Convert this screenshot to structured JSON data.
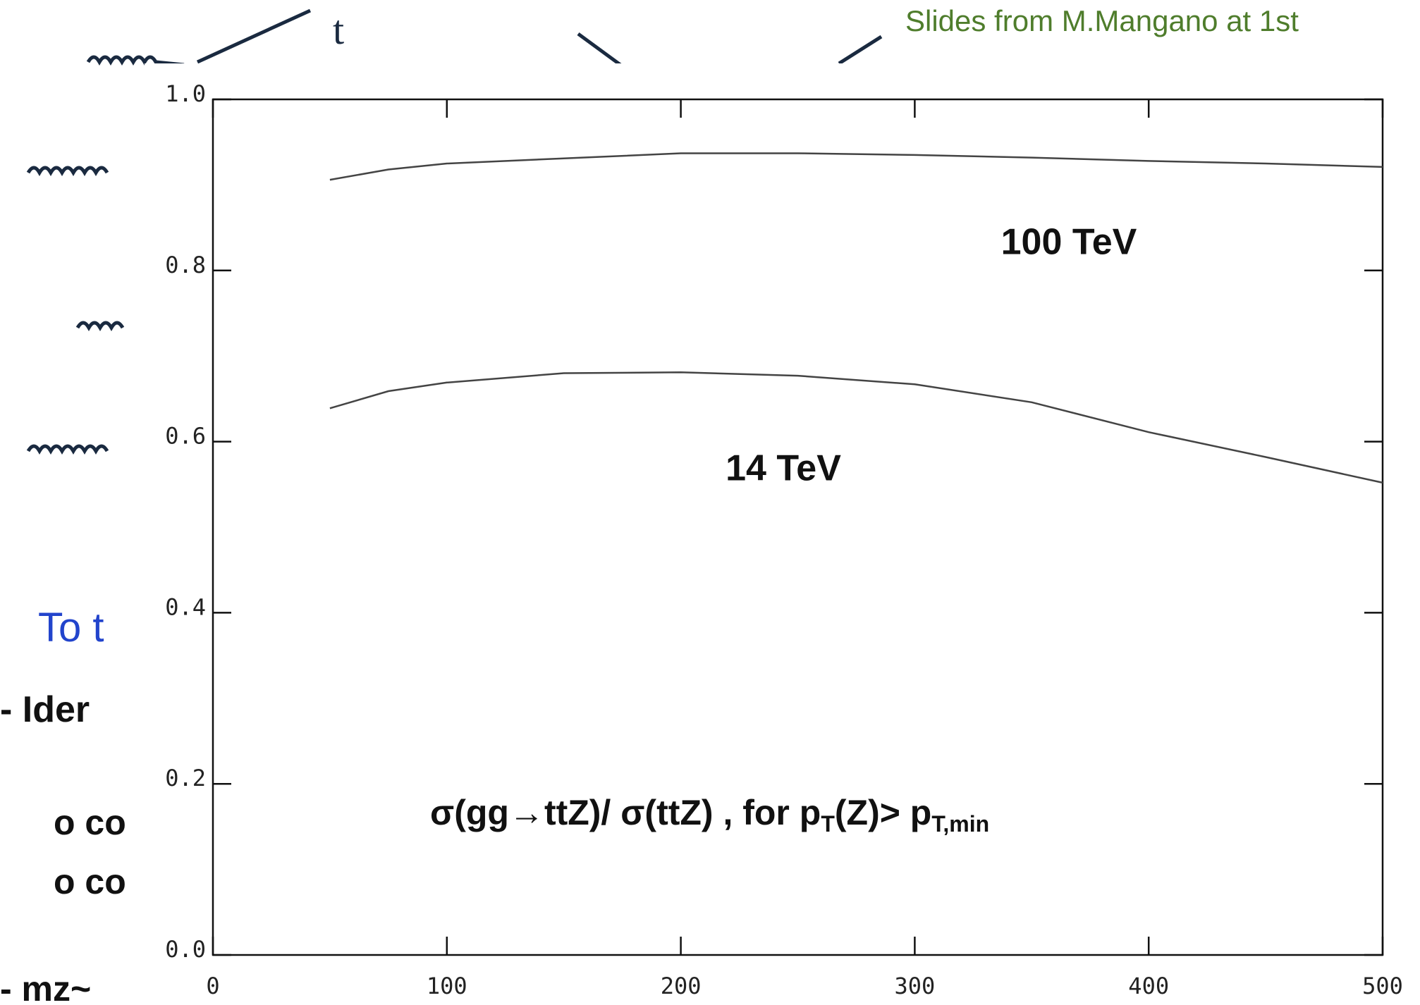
{
  "slide": {
    "source_note": "Slides from M.Mangano at 1st",
    "quark_label": "t",
    "lines": [
      "To t",
      "- Ider",
      "o co",
      "o co",
      "- mz~"
    ]
  },
  "chart_data": {
    "type": "line",
    "x": [
      50,
      75,
      100,
      150,
      200,
      250,
      300,
      350,
      400,
      450,
      500
    ],
    "series": [
      {
        "name": "100 TeV",
        "color": "#444444",
        "values": [
          0.906,
          0.918,
          0.925,
          0.931,
          0.937,
          0.937,
          0.935,
          0.932,
          0.928,
          0.925,
          0.921
        ]
      },
      {
        "name": "14 TeV",
        "color": "#444444",
        "values": [
          0.639,
          0.659,
          0.669,
          0.68,
          0.681,
          0.677,
          0.667,
          0.646,
          0.611,
          0.582,
          0.552
        ]
      }
    ],
    "annotation": [
      "σ(gg→ttZ)/ σ(ttZ) , for p",
      "T",
      "(Z)> p",
      "T,min"
    ],
    "xlim": [
      0,
      500
    ],
    "xticks": [
      0,
      100,
      200,
      300,
      400,
      500
    ],
    "ylim": [
      0,
      1.0
    ],
    "yticks": [
      {
        "value": 0,
        "label": "0.0"
      },
      {
        "value": 0.2,
        "label": "0.2"
      },
      {
        "value": 0.4,
        "label": "0.4"
      },
      {
        "value": 0.6,
        "label": "0.6"
      },
      {
        "value": 0.8,
        "label": "0.8"
      },
      {
        "value": 1.0,
        "label": "1.0"
      }
    ]
  }
}
